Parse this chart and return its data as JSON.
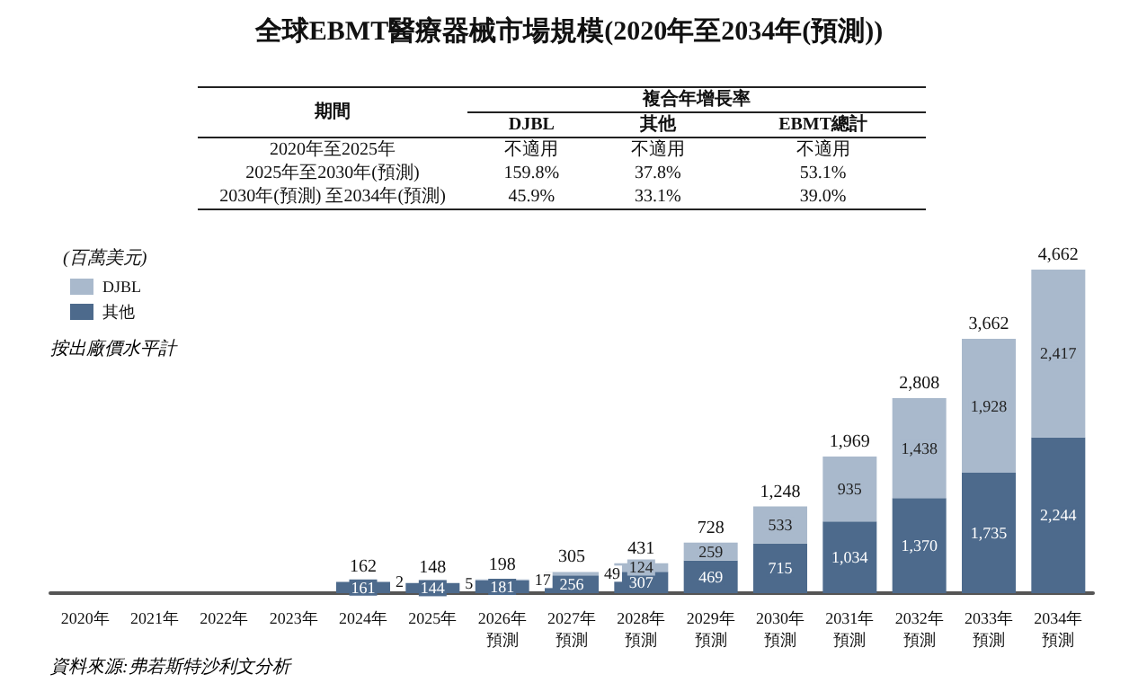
{
  "chart_data": {
    "type": "bar",
    "title": "全球EBMT醫療器械市場規模(2020年至2034年(預測))",
    "ylabel": "(百萬美元)",
    "categories": [
      "2020年",
      "2021年",
      "2022年",
      "2023年",
      "2024年",
      "2025年",
      "2026年預測",
      "2027年預測",
      "2028年預測",
      "2029年預測",
      "2030年預測",
      "2031年預測",
      "2032年預測",
      "2033年預測",
      "2034年預測"
    ],
    "stacked": true,
    "legend": "top left",
    "series": [
      {
        "name": "其他",
        "color": "#4d6a8c",
        "values": [
          null,
          null,
          null,
          null,
          161,
          144,
          181,
          256,
          307,
          469,
          715,
          1034,
          1370,
          1735,
          2244
        ],
        "value_labels": [
          null,
          null,
          null,
          null,
          "161",
          "144",
          "181",
          "256",
          "307",
          "469",
          "715",
          "1,034",
          "1,370",
          "1,735",
          "2,244"
        ]
      },
      {
        "name": "DJBL",
        "color": "#a9b9cc",
        "values": [
          null,
          null,
          null,
          null,
          2,
          5,
          17,
          49,
          124,
          259,
          533,
          935,
          1438,
          1928,
          2417
        ],
        "value_labels": [
          null,
          null,
          null,
          null,
          "2",
          "5",
          "17",
          "49",
          "124",
          "259",
          "533",
          "935",
          "1,438",
          "1,928",
          "2,417"
        ]
      }
    ],
    "totals": [
      null,
      null,
      null,
      null,
      "162",
      "148",
      "198",
      "305",
      "431",
      "728",
      "1,248",
      "1,969",
      "2,808",
      "3,662",
      "4,662"
    ],
    "annotations": [
      "期間",
      "複合年增長率",
      "DJBL",
      "其他",
      "EBMT總計",
      "2020年至2025年",
      "不適用",
      "不適用",
      "不適用",
      "2025年至2030年(預測)",
      "159.8%",
      "37.8%",
      "53.1%",
      "2030年(預測) 至2034年(預測)",
      "45.9%",
      "33.1%",
      "39.0%",
      "按出廠價水平計",
      "資料來源:弗若斯特沙利文分析"
    ]
  }
}
